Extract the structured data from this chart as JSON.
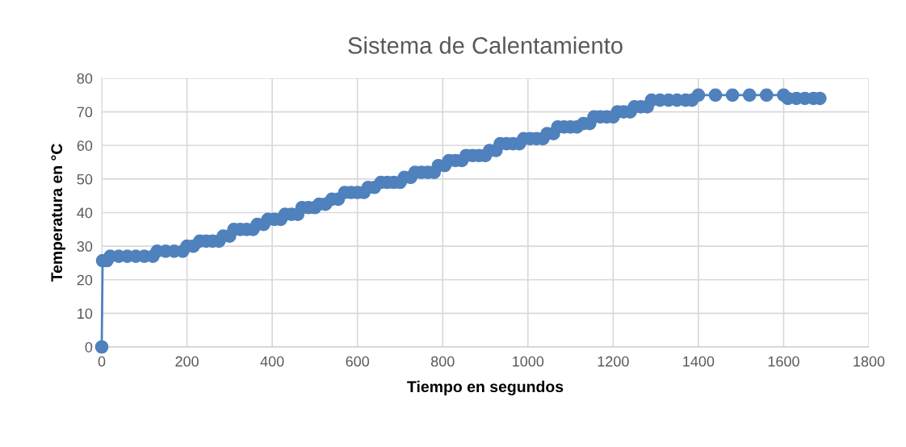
{
  "chart_data": {
    "type": "line",
    "title": "Sistema de Calentamiento",
    "xlabel": "Tiempo en segundos",
    "ylabel": "Temperatura en °C",
    "xlim": [
      0,
      1800
    ],
    "xticks": [
      0,
      200,
      400,
      600,
      800,
      1000,
      1200,
      1400,
      1600,
      1800
    ],
    "ylim": [
      0,
      80
    ],
    "yticks": [
      0,
      10,
      20,
      30,
      40,
      50,
      60,
      70,
      80
    ],
    "grid": true,
    "marker": "circle",
    "line_style": "solid",
    "series": [
      {
        "color": "#4f81bd",
        "x": [
          0,
          2,
          12,
          20,
          40,
          60,
          80,
          100,
          120,
          130,
          150,
          170,
          190,
          200,
          215,
          230,
          245,
          260,
          275,
          285,
          300,
          310,
          325,
          340,
          355,
          365,
          380,
          390,
          405,
          420,
          430,
          445,
          460,
          470,
          485,
          500,
          510,
          525,
          540,
          555,
          570,
          585,
          600,
          615,
          625,
          640,
          655,
          670,
          685,
          700,
          710,
          725,
          735,
          750,
          765,
          780,
          790,
          805,
          815,
          830,
          845,
          855,
          870,
          885,
          900,
          910,
          925,
          935,
          950,
          965,
          980,
          990,
          1005,
          1020,
          1035,
          1045,
          1060,
          1070,
          1085,
          1100,
          1115,
          1130,
          1145,
          1155,
          1170,
          1185,
          1200,
          1210,
          1225,
          1240,
          1250,
          1265,
          1280,
          1290,
          1310,
          1330,
          1350,
          1370,
          1385,
          1400,
          1440,
          1480,
          1520,
          1560,
          1600,
          1610,
          1630,
          1650,
          1670,
          1685
        ],
        "values": [
          0,
          25.7,
          25.7,
          27,
          27,
          27,
          27,
          27,
          27,
          28.5,
          28.5,
          28.5,
          28.5,
          30,
          30,
          31.5,
          31.5,
          31.5,
          31.5,
          33,
          33,
          35,
          35,
          35,
          35,
          36.5,
          36.5,
          38,
          38,
          38,
          39.5,
          39.5,
          39.5,
          41.5,
          41.5,
          41.5,
          42.5,
          42.5,
          44,
          44,
          46,
          46,
          46,
          46,
          47.5,
          47.5,
          49,
          49,
          49,
          49,
          50.5,
          50.5,
          52,
          52,
          52,
          52,
          54,
          54,
          55.5,
          55.5,
          55.5,
          57,
          57,
          57,
          57,
          58.5,
          58.5,
          60.5,
          60.5,
          60.5,
          60.5,
          62,
          62,
          62,
          62,
          63.5,
          63.5,
          65.5,
          65.5,
          65.5,
          65.5,
          66.5,
          66.5,
          68.5,
          68.5,
          68.5,
          68.5,
          70,
          70,
          70,
          71.5,
          71.5,
          71.5,
          73.5,
          73.5,
          73.5,
          73.5,
          73.5,
          73.5,
          75,
          75,
          75,
          75,
          75,
          75,
          74,
          74,
          74,
          74,
          74
        ]
      }
    ]
  }
}
